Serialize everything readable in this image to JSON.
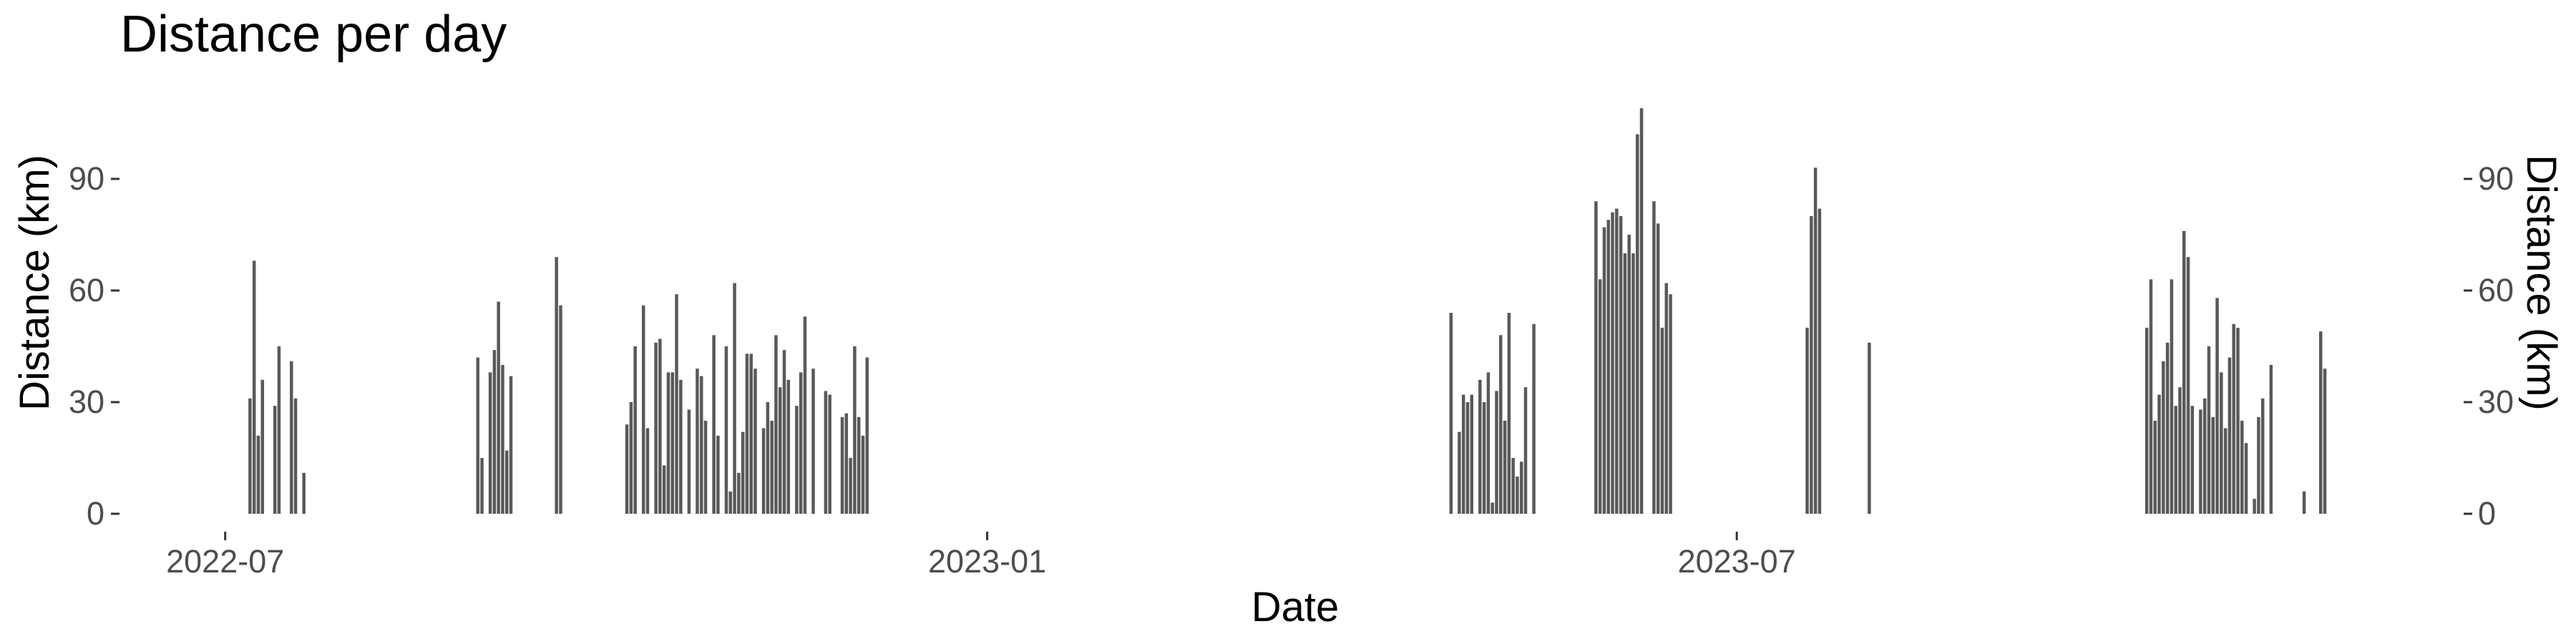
{
  "chart_data": {
    "type": "bar",
    "title": "Distance per day",
    "xlabel": "Date",
    "ylabel": "Distance (km)",
    "ylabel_right": "Distance (km)",
    "ylim": [
      0,
      115
    ],
    "xlim": [
      "2022-06-06",
      "2023-12-23"
    ],
    "grid": false,
    "legend": "none",
    "bar_color": "#595959",
    "x_ticks": [
      {
        "date": "2022-07-01",
        "label": "2022-07"
      },
      {
        "date": "2023-01-01",
        "label": "2023-01"
      },
      {
        "date": "2023-07-01",
        "label": "2023-07"
      }
    ],
    "y_ticks": [
      0,
      30,
      60,
      90
    ],
    "x": [
      "2022-07-07",
      "2022-07-08",
      "2022-07-09",
      "2022-07-10",
      "2022-07-13",
      "2022-07-14",
      "2022-07-17",
      "2022-07-18",
      "2022-07-20",
      "2022-08-31",
      "2022-09-01",
      "2022-09-03",
      "2022-09-04",
      "2022-09-05",
      "2022-09-06",
      "2022-09-07",
      "2022-09-08",
      "2022-09-19",
      "2022-09-20",
      "2022-10-06",
      "2022-10-07",
      "2022-10-08",
      "2022-10-10",
      "2022-10-11",
      "2022-10-13",
      "2022-10-14",
      "2022-10-15",
      "2022-10-16",
      "2022-10-17",
      "2022-10-18",
      "2022-10-19",
      "2022-10-21",
      "2022-10-23",
      "2022-10-24",
      "2022-10-25",
      "2022-10-27",
      "2022-10-28",
      "2022-10-30",
      "2022-10-31",
      "2022-11-01",
      "2022-11-02",
      "2022-11-03",
      "2022-11-04",
      "2022-11-05",
      "2022-11-06",
      "2022-11-08",
      "2022-11-09",
      "2022-11-10",
      "2022-11-11",
      "2022-11-12",
      "2022-11-13",
      "2022-11-14",
      "2022-11-16",
      "2022-11-17",
      "2022-11-18",
      "2022-11-20",
      "2022-11-23",
      "2022-11-24",
      "2022-11-27",
      "2022-11-28",
      "2022-11-29",
      "2022-11-30",
      "2022-12-01",
      "2022-12-02",
      "2022-12-03",
      "2023-04-23",
      "2023-04-25",
      "2023-04-26",
      "2023-04-27",
      "2023-04-28",
      "2023-04-30",
      "2023-05-01",
      "2023-05-02",
      "2023-05-03",
      "2023-05-04",
      "2023-05-05",
      "2023-05-06",
      "2023-05-07",
      "2023-05-08",
      "2023-05-09",
      "2023-05-10",
      "2023-05-11",
      "2023-05-13",
      "2023-05-28",
      "2023-05-29",
      "2023-05-30",
      "2023-05-31",
      "2023-06-01",
      "2023-06-02",
      "2023-06-03",
      "2023-06-04",
      "2023-06-05",
      "2023-06-06",
      "2023-06-07",
      "2023-06-08",
      "2023-06-11",
      "2023-06-12",
      "2023-06-13",
      "2023-06-14",
      "2023-06-15",
      "2023-07-18",
      "2023-07-19",
      "2023-07-20",
      "2023-07-21",
      "2023-08-02",
      "2023-10-08",
      "2023-10-09",
      "2023-10-10",
      "2023-10-11",
      "2023-10-12",
      "2023-10-13",
      "2023-10-14",
      "2023-10-15",
      "2023-10-16",
      "2023-10-17",
      "2023-10-18",
      "2023-10-19",
      "2023-10-21",
      "2023-10-22",
      "2023-10-23",
      "2023-10-24",
      "2023-10-25",
      "2023-10-26",
      "2023-10-27",
      "2023-10-28",
      "2023-10-29",
      "2023-10-30",
      "2023-10-31",
      "2023-11-01",
      "2023-11-03",
      "2023-11-04",
      "2023-11-05",
      "2023-11-07",
      "2023-11-15",
      "2023-11-19",
      "2023-11-20"
    ],
    "values": [
      31,
      68,
      21,
      36,
      29,
      45,
      41,
      31,
      11,
      42,
      15,
      38,
      44,
      57,
      40,
      17,
      37,
      69,
      56,
      24,
      30,
      45,
      56,
      23,
      46,
      47,
      13,
      38,
      38,
      59,
      36,
      28,
      39,
      37,
      25,
      48,
      21,
      45,
      6,
      62,
      11,
      22,
      43,
      43,
      39,
      23,
      30,
      25,
      48,
      34,
      44,
      36,
      29,
      38,
      53,
      39,
      33,
      32,
      26,
      27,
      15,
      45,
      26,
      21,
      42,
      54,
      22,
      32,
      30,
      32,
      36,
      30,
      38,
      3,
      33,
      48,
      25,
      54,
      15,
      10,
      14,
      34,
      51,
      84,
      63,
      77,
      79,
      81,
      82,
      80,
      70,
      75,
      70,
      102,
      109,
      84,
      78,
      50,
      62,
      59,
      50,
      80,
      93,
      82,
      46,
      50,
      63,
      25,
      32,
      41,
      46,
      63,
      29,
      34,
      76,
      69,
      29,
      28,
      31,
      45,
      26,
      58,
      38,
      23,
      42,
      51,
      50,
      25,
      19,
      4,
      26,
      31,
      40,
      6,
      49,
      39
    ]
  }
}
